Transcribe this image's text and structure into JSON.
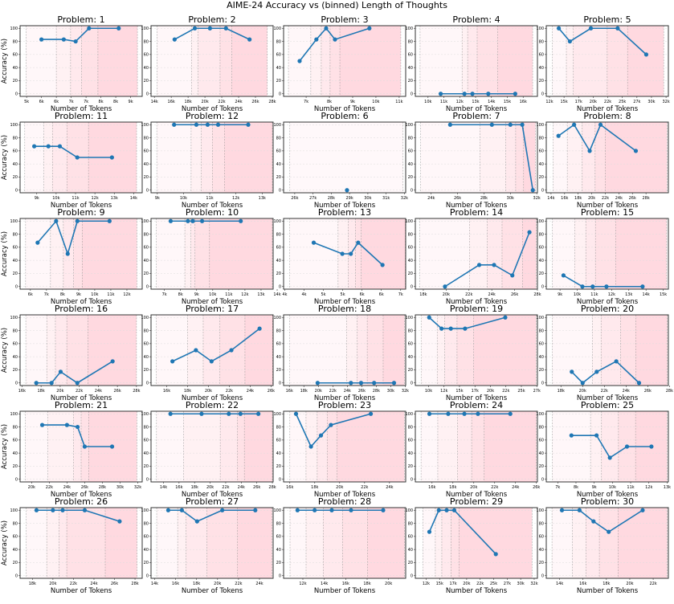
{
  "title": "AIME-24 Accuracy vs (binned) Length of Thoughts",
  "xlabel": "Number of Tokens",
  "ylabel": "Accuracy (%)",
  "yticks": [
    0,
    20,
    40,
    60,
    80,
    100
  ],
  "ytick_labels": [
    "0",
    "20",
    "40",
    "60",
    "80",
    "100"
  ],
  "ylim": [
    -4,
    104
  ],
  "colors": {
    "line": "#1f77b4",
    "bin_shade": "#ff8fa3",
    "bin_edge": "#888888"
  },
  "chart_data": [
    {
      "type": "line",
      "title": "Problem: 1",
      "xlim": [
        4.78,
        8.89
      ],
      "xticks": [
        5,
        5.5,
        6,
        6.5,
        7,
        7.5,
        8,
        8.5
      ],
      "xtick_labels": [
        "5k",
        "6k",
        "6k",
        "7k",
        "7k",
        "8k",
        "8k",
        "9k"
      ],
      "x": [
        5.5,
        6.25,
        6.65,
        7.1,
        8.1
      ],
      "y": [
        83,
        83,
        80,
        100,
        100
      ],
      "bin_edges": [
        4.98,
        6.0,
        6.48,
        6.85,
        7.4,
        8.73
      ]
    },
    {
      "type": "line",
      "title": "Problem: 2",
      "xlim": [
        13.6,
        28.1
      ],
      "xticks": [
        14,
        16,
        18,
        20,
        22,
        24,
        26,
        28
      ],
      "xtick_labels": [
        "14k",
        "16k",
        "18k",
        "20k",
        "22k",
        "24k",
        "26k",
        "28k"
      ],
      "x": [
        16.4,
        18.8,
        20.6,
        22.5,
        25.3
      ],
      "y": [
        83,
        100,
        100,
        100,
        83
      ],
      "bin_edges": [
        14.3,
        18.4,
        19.2,
        21.8,
        23.2,
        27.4
      ]
    },
    {
      "type": "line",
      "title": "Problem: 3",
      "xlim": [
        6.03,
        11.28
      ],
      "xticks": [
        7,
        8,
        9,
        10,
        11
      ],
      "xtick_labels": [
        "7k",
        "8k",
        "9k",
        "10k",
        "11k"
      ],
      "x": [
        6.72,
        7.44,
        7.86,
        8.24,
        9.72
      ],
      "y": [
        50,
        83,
        100,
        83,
        100
      ],
      "bin_edges": [
        6.24,
        7.2,
        7.65,
        8.03,
        8.45,
        11.07
      ]
    },
    {
      "type": "line",
      "title": "Problem: 4",
      "xlim": [
        9.2,
        16.9
      ],
      "xticks": [
        10,
        11,
        12,
        13,
        14,
        15,
        16
      ],
      "xtick_labels": [
        "10k",
        "11k",
        "12k",
        "13k",
        "14k",
        "15k",
        "16k"
      ],
      "x": [
        10.8,
        12.3,
        12.8,
        13.8,
        15.5
      ],
      "y": [
        0,
        0,
        0,
        0,
        0
      ],
      "bin_edges": [
        9.5,
        12.15,
        12.5,
        13.1,
        14.4,
        16.6
      ]
    },
    {
      "type": "line",
      "title": "Problem: 5",
      "xlim": [
        11.95,
        32.9
      ],
      "xticks": [
        12.5,
        15,
        17.5,
        20,
        22.5,
        25,
        27.5,
        30,
        32.5
      ],
      "xtick_labels": [
        "12k",
        "15k",
        "17k",
        "20k",
        "22k",
        "25k",
        "27k",
        "30k",
        "32k"
      ],
      "x": [
        14.1,
        16.0,
        19.6,
        24.2,
        29.1
      ],
      "y": [
        100,
        80,
        100,
        100,
        60
      ],
      "bin_edges": [
        13.0,
        15.4,
        16.6,
        22.4,
        25.9,
        32.1
      ]
    },
    {
      "type": "line",
      "title": "Problem: 11",
      "xlim": [
        8.14,
        14.44
      ],
      "xticks": [
        9,
        10,
        11,
        12,
        13,
        14
      ],
      "xtick_labels": [
        "9k",
        "10k",
        "11k",
        "12k",
        "13k",
        "14k"
      ],
      "x": [
        8.87,
        9.6,
        10.19,
        11.09,
        12.88
      ],
      "y": [
        67,
        67,
        67,
        50,
        50
      ],
      "bin_edges": [
        8.38,
        9.37,
        9.81,
        10.56,
        11.67,
        14.15
      ]
    },
    {
      "type": "line",
      "title": "Problem: 12",
      "xlim": [
        8.76,
        13.42
      ],
      "xticks": [
        9,
        10,
        11,
        12,
        13
      ],
      "xtick_labels": [
        "9k",
        "10k",
        "11k",
        "12k",
        "13k"
      ],
      "x": [
        9.64,
        10.49,
        10.92,
        11.32,
        12.47
      ],
      "y": [
        100,
        100,
        100,
        100,
        100
      ],
      "bin_edges": [
        8.98,
        10.29,
        10.68,
        11.1,
        11.56,
        13.39
      ]
    },
    {
      "type": "line",
      "title": "Problem: 6",
      "xlim": [
        25.39,
        32.07
      ],
      "xticks": [
        26,
        27,
        28,
        29,
        30,
        31,
        32
      ],
      "xtick_labels": [
        "26k",
        "27k",
        "28k",
        "29k",
        "30k",
        "31k",
        "32k"
      ],
      "x": [
        28.86
      ],
      "y": [
        0
      ],
      "bin_edges": [
        25.73,
        31.92
      ]
    },
    {
      "type": "line",
      "title": "Problem: 7",
      "xlim": [
        22.8,
        32.05
      ],
      "xticks": [
        24,
        26,
        28,
        30,
        32
      ],
      "xtick_labels": [
        "24k",
        "26k",
        "28k",
        "30k",
        "32k"
      ],
      "x": [
        25.44,
        28.6,
        30.0,
        30.9,
        31.7
      ],
      "y": [
        100,
        100,
        100,
        100,
        0
      ],
      "bin_edges": [
        23.2,
        27.7,
        29.65,
        30.4,
        31.0,
        31.9
      ]
    },
    {
      "type": "line",
      "title": "Problem: 8",
      "xlim": [
        13.3,
        31.3
      ],
      "xticks": [
        14,
        16,
        18,
        20,
        22,
        24,
        26,
        28
      ],
      "xtick_labels": [
        "14k",
        "16k",
        "18k",
        "20k",
        "22k",
        "24k",
        "26k",
        "28k"
      ],
      "x": [
        15.1,
        17.4,
        19.7,
        21.3,
        26.5
      ],
      "y": [
        83,
        100,
        60,
        100,
        60
      ],
      "bin_edges": [
        14.3,
        16.4,
        18.6,
        20.5,
        22.0,
        31.1
      ]
    },
    {
      "type": "line",
      "title": "Problem: 9",
      "xlim": [
        5.36,
        12.95
      ],
      "xticks": [
        6,
        7,
        8,
        9,
        10,
        11,
        12
      ],
      "xtick_labels": [
        "6k",
        "7k",
        "8k",
        "9k",
        "10k",
        "11k",
        "12k"
      ],
      "x": [
        6.45,
        7.6,
        8.32,
        8.92,
        10.92
      ],
      "y": [
        67,
        100,
        50,
        100,
        100
      ],
      "bin_edges": [
        5.7,
        7.25,
        8.05,
        8.69,
        9.22,
        12.62
      ]
    },
    {
      "type": "line",
      "title": "Problem: 10",
      "xlim": [
        6.17,
        13.75
      ],
      "xticks": [
        7,
        8,
        9,
        10,
        11,
        12,
        13,
        14
      ],
      "xtick_labels": [
        "7k",
        "8k",
        "9k",
        "10k",
        "11k",
        "12k",
        "13k",
        "14k"
      ],
      "x": [
        7.39,
        8.46,
        8.76,
        9.34,
        11.74
      ],
      "y": [
        100,
        100,
        100,
        100,
        100
      ],
      "bin_edges": [
        6.5,
        8.27,
        8.65,
        8.9,
        9.8,
        13.7
      ]
    },
    {
      "type": "line",
      "title": "Problem: 13",
      "xlim": [
        3.97,
        7.13
      ],
      "xticks": [
        4,
        4.5,
        5,
        5.5,
        6,
        6.5,
        7
      ],
      "xtick_labels": [
        "4k",
        "4k",
        "5k",
        "5k",
        "6k",
        "6k",
        "7k"
      ],
      "x": [
        4.75,
        5.49,
        5.71,
        5.9,
        6.53
      ],
      "y": [
        67,
        50,
        50,
        67,
        33
      ],
      "bin_edges": [
        4.13,
        5.38,
        5.64,
        5.83,
        5.98,
        7.12
      ]
    },
    {
      "type": "line",
      "title": "Problem: 14",
      "xlim": [
        17.3,
        28.0
      ],
      "xticks": [
        18,
        20,
        22,
        24,
        26,
        28
      ],
      "xtick_labels": [
        "18k",
        "20k",
        "22k",
        "24k",
        "26k",
        "28k"
      ],
      "x": [
        19.9,
        22.9,
        24.2,
        25.8,
        27.3
      ],
      "y": [
        0,
        33,
        33,
        17,
        83
      ],
      "bin_edges": [
        17.7,
        22.05,
        23.6,
        24.9,
        26.7,
        27.9
      ]
    },
    {
      "type": "line",
      "title": "Problem: 15",
      "xlim": [
        8.2,
        15.3
      ],
      "xticks": [
        9,
        10,
        11,
        12,
        13,
        14,
        15
      ],
      "xtick_labels": [
        "9k",
        "10k",
        "11k",
        "12k",
        "13k",
        "14k",
        "15k"
      ],
      "x": [
        9.2,
        10.3,
        10.9,
        11.7,
        13.8
      ],
      "y": [
        17,
        0,
        0,
        0,
        0
      ],
      "bin_edges": [
        8.56,
        9.85,
        10.5,
        11.06,
        12.24,
        15.2
      ]
    },
    {
      "type": "line",
      "title": "Problem: 16",
      "xlim": [
        15.8,
        28.6
      ],
      "xticks": [
        16,
        18,
        20,
        22,
        24,
        26,
        28
      ],
      "xtick_labels": [
        "16k",
        "18k",
        "20k",
        "22k",
        "24k",
        "26k",
        "28k"
      ],
      "x": [
        17.5,
        19.1,
        20.05,
        21.8,
        25.5
      ],
      "y": [
        0,
        0,
        17,
        0,
        33
      ],
      "bin_edges": [
        16.4,
        18.6,
        19.5,
        20.7,
        22.9,
        28.0
      ]
    },
    {
      "type": "line",
      "title": "Problem: 17",
      "xlim": [
        14.5,
        26.2
      ],
      "xticks": [
        16,
        18,
        20,
        22,
        24,
        26
      ],
      "xtick_labels": [
        "16k",
        "18k",
        "20k",
        "22k",
        "24k",
        "26k"
      ],
      "x": [
        16.55,
        18.8,
        20.3,
        22.2,
        24.9
      ],
      "y": [
        33,
        50,
        33,
        50,
        83
      ],
      "bin_edges": [
        15.0,
        18.0,
        19.5,
        21.1,
        23.5,
        26.15
      ]
    },
    {
      "type": "line",
      "title": "Problem: 18",
      "xlim": [
        15.2,
        32.06
      ],
      "xticks": [
        16,
        18,
        20,
        22,
        24,
        26,
        28,
        30,
        32
      ],
      "xtick_labels": [
        "16k",
        "18k",
        "20k",
        "22k",
        "24k",
        "26k",
        "28k",
        "30k",
        "32k"
      ],
      "x": [
        19.9,
        24.5,
        25.9,
        27.7,
        30.45
      ],
      "y": [
        0,
        0,
        0,
        0,
        0
      ],
      "bin_edges": [
        16.05,
        23.9,
        25.35,
        26.75,
        28.95,
        31.9
      ]
    },
    {
      "type": "line",
      "title": "Problem: 19",
      "xlim": [
        7.86,
        27.6
      ],
      "xticks": [
        10,
        12.5,
        15,
        17.5,
        20,
        22.5,
        25,
        27.5
      ],
      "xtick_labels": [
        "10k",
        "12k",
        "15k",
        "17k",
        "20k",
        "22k",
        "25k",
        "27k"
      ],
      "x": [
        10.1,
        12.1,
        13.6,
        15.9,
        22.4
      ],
      "y": [
        100,
        83,
        83,
        83,
        100
      ],
      "bin_edges": [
        8.8,
        11.4,
        12.6,
        14.6,
        17.3,
        27.4
      ]
    },
    {
      "type": "line",
      "title": "Problem: 20",
      "xlim": [
        16.65,
        27.9
      ],
      "xticks": [
        18,
        20,
        22,
        24,
        26,
        28
      ],
      "xtick_labels": [
        "18k",
        "20k",
        "22k",
        "24k",
        "26k",
        "28k"
      ],
      "x": [
        19.0,
        20.0,
        21.3,
        23.1,
        25.2
      ],
      "y": [
        17,
        0,
        17,
        33,
        0
      ],
      "bin_edges": [
        17.2,
        20.9,
        21.7,
        23.5,
        24.9,
        27.8
      ]
    },
    {
      "type": "line",
      "title": "Problem: 21",
      "xlim": [
        18.7,
        32.5
      ],
      "xticks": [
        20,
        22,
        24,
        26,
        28,
        30,
        32
      ],
      "xtick_labels": [
        "20k",
        "22k",
        "24k",
        "26k",
        "28k",
        "30k",
        "32k"
      ],
      "x": [
        21.2,
        24.0,
        25.2,
        26.0,
        29.1
      ],
      "y": [
        83,
        83,
        80,
        50,
        50
      ],
      "bin_edges": [
        19.3,
        21.85,
        24.75,
        25.6,
        26.45,
        31.9
      ]
    },
    {
      "type": "line",
      "title": "Problem: 22",
      "xlim": [
        12.4,
        28.1
      ],
      "xticks": [
        14,
        16,
        18,
        20,
        22,
        24,
        26,
        28
      ],
      "xtick_labels": [
        "14k",
        "16k",
        "18k",
        "20k",
        "22k",
        "24k",
        "26k",
        "28k"
      ],
      "x": [
        14.9,
        18.9,
        22.4,
        23.9,
        26.2
      ],
      "y": [
        100,
        100,
        100,
        100,
        100
      ],
      "bin_edges": [
        13.1,
        16.6,
        21.3,
        23.5,
        24.4,
        28.0
      ]
    },
    {
      "type": "line",
      "title": "Problem: 23",
      "xlim": [
        15.5,
        25.3
      ],
      "xticks": [
        16,
        18,
        20,
        22,
        24
      ],
      "xtick_labels": [
        "16k",
        "18k",
        "20k",
        "22k",
        "24k"
      ],
      "x": [
        16.5,
        17.7,
        18.5,
        19.3,
        22.5
      ],
      "y": [
        100,
        50,
        67,
        83,
        100
      ],
      "bin_edges": [
        16.0,
        17.3,
        18.2,
        19.0,
        19.8,
        25.2
      ]
    },
    {
      "type": "line",
      "title": "Problem: 24",
      "xlim": [
        14.4,
        26.1
      ],
      "xticks": [
        16,
        18,
        20,
        22,
        24,
        26
      ],
      "xtick_labels": [
        "16k",
        "18k",
        "20k",
        "22k",
        "24k",
        "26k"
      ],
      "x": [
        15.75,
        17.55,
        19.1,
        20.4,
        23.5
      ],
      "y": [
        100,
        100,
        100,
        100,
        100
      ],
      "bin_edges": [
        14.95,
        16.55,
        18.45,
        19.8,
        21.0,
        26.0
      ]
    },
    {
      "type": "line",
      "title": "Problem: 25",
      "xlim": [
        6.37,
        13.07
      ],
      "xticks": [
        7,
        8,
        9,
        10,
        11,
        12,
        13
      ],
      "xtick_labels": [
        "7k",
        "8k",
        "9k",
        "10k",
        "11k",
        "12k",
        "13k"
      ],
      "x": [
        7.75,
        9.13,
        9.86,
        10.8,
        12.14
      ],
      "y": [
        67,
        67,
        33,
        50,
        50
      ],
      "bin_edges": [
        6.7,
        8.8,
        9.4,
        10.33,
        11.27,
        13.0
      ]
    },
    {
      "type": "line",
      "title": "Problem: 26",
      "xlim": [
        16.8,
        28.7
      ],
      "xticks": [
        18,
        20,
        22,
        24,
        26,
        28
      ],
      "xtick_labels": [
        "18k",
        "20k",
        "22k",
        "24k",
        "26k",
        "28k"
      ],
      "x": [
        18.4,
        20.0,
        20.95,
        23.1,
        26.5
      ],
      "y": [
        100,
        100,
        100,
        100,
        83
      ],
      "bin_edges": [
        17.4,
        19.4,
        20.6,
        21.35,
        25.1,
        28.2
      ]
    },
    {
      "type": "line",
      "title": "Problem: 27",
      "xlim": [
        13.66,
        25.3
      ],
      "xticks": [
        14,
        16,
        18,
        20,
        22,
        24
      ],
      "xtick_labels": [
        "14k",
        "16k",
        "18k",
        "20k",
        "22k",
        "24k"
      ],
      "x": [
        15.3,
        16.6,
        18.05,
        20.45,
        23.6
      ],
      "y": [
        100,
        100,
        83,
        100,
        100
      ],
      "bin_edges": [
        14.2,
        16.2,
        17.0,
        19.0,
        21.9,
        25.2
      ]
    },
    {
      "type": "line",
      "title": "Problem: 28",
      "xlim": [
        10.2,
        21.6
      ],
      "xticks": [
        12,
        14,
        16,
        18,
        20
      ],
      "xtick_labels": [
        "12k",
        "14k",
        "16k",
        "18k",
        "20k"
      ],
      "x": [
        11.5,
        13.1,
        14.7,
        16.5,
        19.5
      ],
      "y": [
        100,
        100,
        100,
        100,
        100
      ],
      "bin_edges": [
        10.8,
        12.3,
        13.9,
        15.7,
        18.05,
        21.5
      ]
    },
    {
      "type": "line",
      "title": "Problem: 29",
      "xlim": [
        10.5,
        33.1
      ],
      "xticks": [
        12.5,
        15,
        17.5,
        20,
        22.5,
        25,
        27.5,
        30,
        32.5
      ],
      "xtick_labels": [
        "12k",
        "15k",
        "17k",
        "20k",
        "22k",
        "25k",
        "27k",
        "30k",
        "32k"
      ],
      "x": [
        13.1,
        14.85,
        16.3,
        17.7,
        25.4
      ],
      "y": [
        67,
        100,
        100,
        100,
        33
      ],
      "bin_edges": [
        11.9,
        14.2,
        15.4,
        17.1,
        18.6,
        32.1
      ]
    },
    {
      "type": "line",
      "title": "Problem: 30",
      "xlim": [
        12.86,
        23.3
      ],
      "xticks": [
        14,
        16,
        18,
        20,
        22
      ],
      "xtick_labels": [
        "14k",
        "16k",
        "18k",
        "20k",
        "22k"
      ],
      "x": [
        14.2,
        15.7,
        16.9,
        18.2,
        21.1
      ],
      "y": [
        100,
        100,
        83,
        67,
        100
      ],
      "bin_edges": [
        13.35,
        15.1,
        16.25,
        17.4,
        19.0,
        23.2
      ]
    }
  ]
}
